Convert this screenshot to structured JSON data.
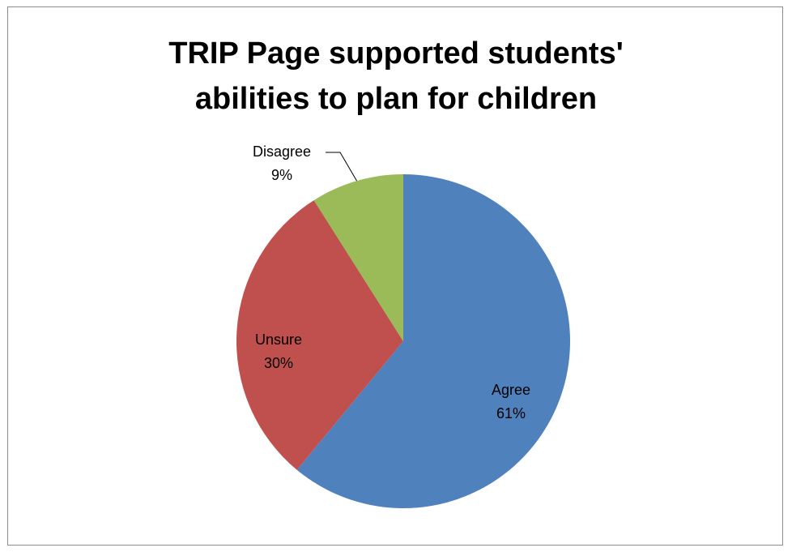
{
  "chart_data": {
    "type": "pie",
    "title_lines": [
      "TRIP Page supported students'",
      "abilities to plan for children"
    ],
    "categories": [
      "Agree",
      "Unsure",
      "Disagree"
    ],
    "values": [
      61,
      30,
      9
    ],
    "value_labels": [
      "61%",
      "30%",
      "9%"
    ],
    "colors": [
      "#4f81bd",
      "#c0504d",
      "#9bbb59"
    ],
    "start_angle_deg": 0,
    "direction": "clockwise",
    "legend": "none",
    "data_labels": "category and percent"
  }
}
